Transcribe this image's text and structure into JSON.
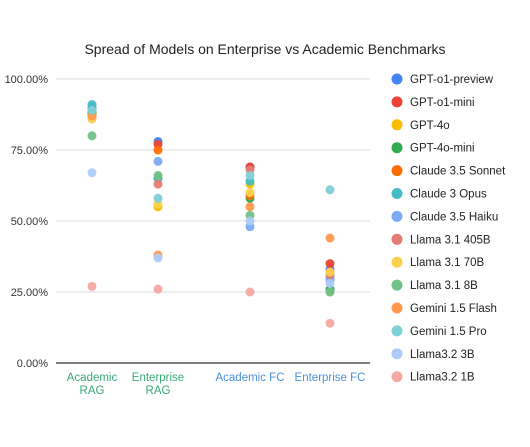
{
  "chart_data": {
    "type": "scatter",
    "title": "Spread of Models on Enterprise vs Academic Benchmarks",
    "xlabel": "",
    "ylabel": "",
    "categories": [
      {
        "label": [
          "Academic",
          "RAG"
        ],
        "color": "#3aa876"
      },
      {
        "label": [
          "Enterprise",
          "RAG"
        ],
        "color": "#3aa876"
      },
      {
        "label": [
          "Academic FC"
        ],
        "color": "#4a90d9"
      },
      {
        "label": [
          "Enterprise FC"
        ],
        "color": "#4a90d9"
      }
    ],
    "ylim": [
      0,
      1.0
    ],
    "yticks": [
      0,
      0.25,
      0.5,
      0.75,
      1.0
    ],
    "ytick_labels": [
      "0.00%",
      "25.00%",
      "50.00%",
      "75.00%",
      "100.00%"
    ],
    "grid": true,
    "legend_position": "right",
    "series": [
      {
        "name": "GPT-o1-preview",
        "color": "#4285f4",
        "values": [
          0.9,
          0.78,
          0.69,
          0.33
        ]
      },
      {
        "name": "GPT-o1-mini",
        "color": "#ea4335",
        "values": [
          0.88,
          0.77,
          0.69,
          0.35
        ]
      },
      {
        "name": "GPT-4o",
        "color": "#fbbc04",
        "values": [
          0.88,
          0.55,
          0.63,
          0.25
        ]
      },
      {
        "name": "GPT-4o-mini",
        "color": "#34a853",
        "values": [
          0.88,
          0.65,
          0.58,
          0.26
        ]
      },
      {
        "name": "Claude 3.5 Sonnet",
        "color": "#ff6d01",
        "values": [
          0.87,
          0.75,
          0.59,
          0.32
        ]
      },
      {
        "name": "Claude 3 Opus",
        "color": "#46bdc6",
        "values": [
          0.91,
          0.65,
          0.64,
          0.3
        ]
      },
      {
        "name": "Claude 3.5 Haiku",
        "color": "#7baaf7",
        "values": [
          0.86,
          0.71,
          0.48,
          0.29
        ]
      },
      {
        "name": "Llama 3.1 405B",
        "color": "#e67c73",
        "values": [
          0.87,
          0.63,
          0.68,
          0.31
        ]
      },
      {
        "name": "Llama 3.1 70B",
        "color": "#fcd04f",
        "values": [
          0.86,
          0.56,
          0.6,
          0.32
        ]
      },
      {
        "name": "Llama 3.1 8B",
        "color": "#71c287",
        "values": [
          0.8,
          0.66,
          0.52,
          0.25
        ]
      },
      {
        "name": "Gemini 1.5 Flash",
        "color": "#ff994d",
        "values": [
          0.87,
          0.38,
          0.55,
          0.44
        ]
      },
      {
        "name": "Gemini 1.5 Pro",
        "color": "#7ed1d7",
        "values": [
          0.89,
          0.58,
          0.66,
          0.61
        ]
      },
      {
        "name": "Llama3.2 3B",
        "color": "#aecbfa",
        "values": [
          0.67,
          0.37,
          0.5,
          0.28
        ]
      },
      {
        "name": "Llama3.2 1B",
        "color": "#f4a9a2",
        "values": [
          0.27,
          0.26,
          0.25,
          0.14
        ]
      }
    ]
  }
}
